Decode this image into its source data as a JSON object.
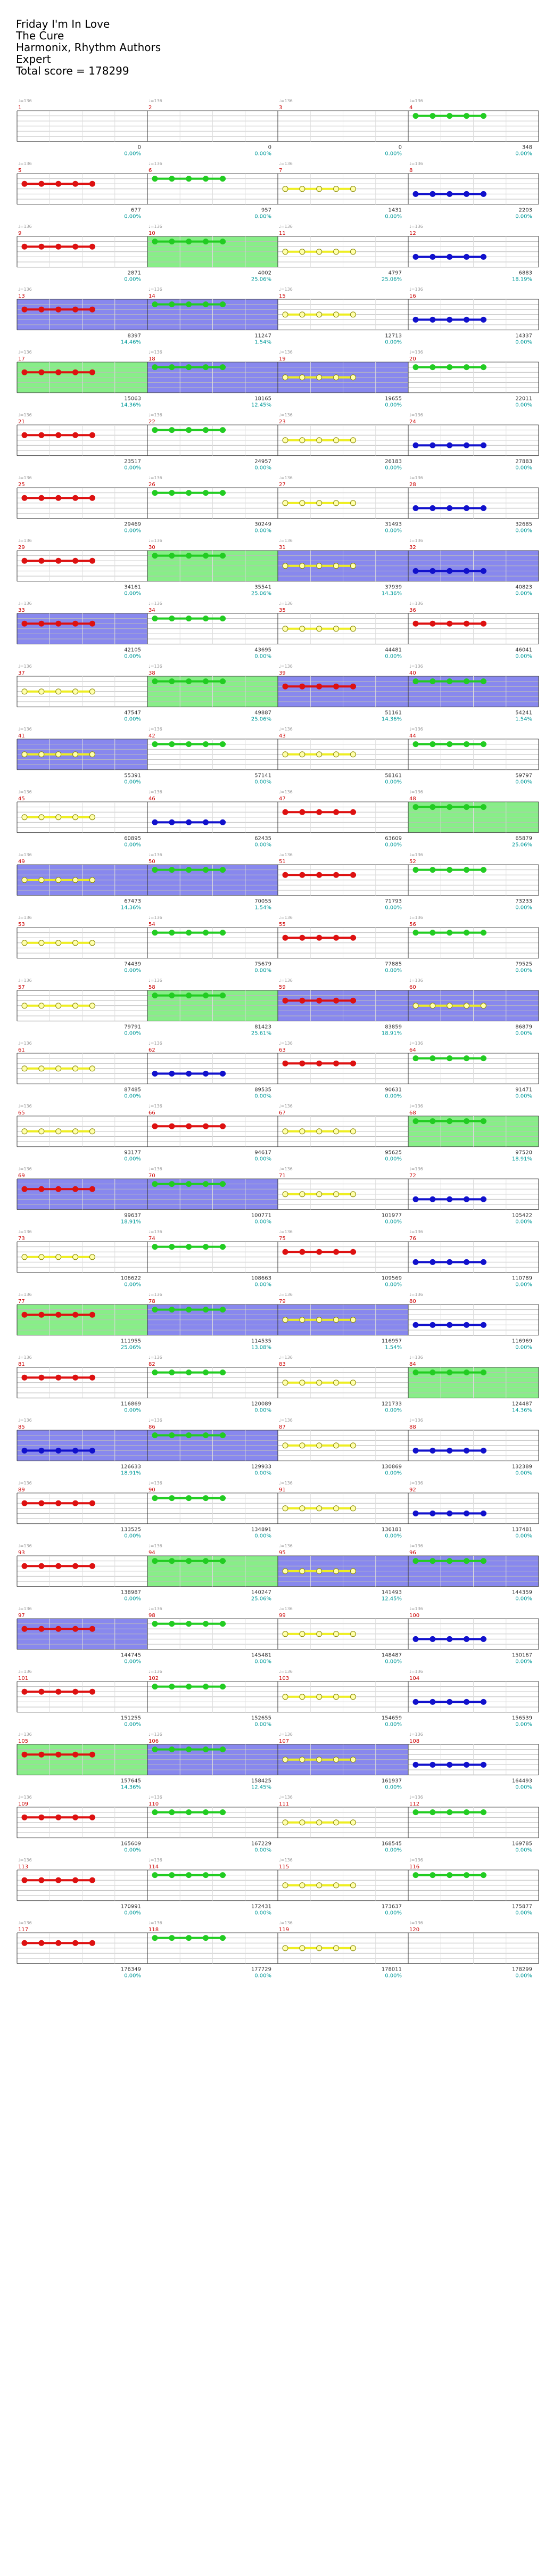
{
  "header": {
    "song": "Friday I'm In Love",
    "artist": "The Cure",
    "charter": "Harmonix, Rhythm Authors",
    "difficulty": "Expert",
    "score_label": "Total score = 178299"
  },
  "measures_per_row": 4,
  "note_colors": {
    "green": "#22cc22",
    "red": "#dd1111",
    "yellow": "#eeee22",
    "blue": "#1111cc",
    "orange": "#ff9900",
    "sp_band": "#8888ee",
    "solo_band": "#88ee88",
    "bar_number": "#cc0000",
    "score_text": "#333333",
    "percent_text": "#009999"
  },
  "measures": [
    {
      "n": 1,
      "score": "0",
      "pct": "0.00%",
      "band": "",
      "lane": ""
    },
    {
      "n": 2,
      "score": "0",
      "pct": "0.00%",
      "band": "",
      "lane": ""
    },
    {
      "n": 3,
      "score": "0",
      "pct": "0.00%",
      "band": "",
      "lane": ""
    },
    {
      "n": 4,
      "score": "348",
      "pct": "0.00%",
      "band": "",
      "lane": "green"
    },
    {
      "n": 5,
      "score": "677",
      "pct": "0.00%",
      "band": "",
      "lane": "red"
    },
    {
      "n": 6,
      "score": "957",
      "pct": "0.00%",
      "band": "",
      "lane": "green"
    },
    {
      "n": 7,
      "score": "1431",
      "pct": "0.00%",
      "band": "",
      "lane": "yellow"
    },
    {
      "n": 8,
      "score": "2203",
      "pct": "0.00%",
      "band": "",
      "lane": "blue"
    },
    {
      "n": 9,
      "score": "2871",
      "pct": "0.00%",
      "band": "",
      "lane": "red"
    },
    {
      "n": 10,
      "score": "4002",
      "pct": "25.06%",
      "band": "solo",
      "lane": "green"
    },
    {
      "n": 11,
      "score": "4797",
      "pct": "25.06%",
      "band": "",
      "lane": "yellow"
    },
    {
      "n": 12,
      "score": "6883",
      "pct": "18.19%",
      "band": "",
      "lane": "blue"
    },
    {
      "n": 13,
      "score": "8397",
      "pct": "14.46%",
      "band": "sp",
      "lane": "red"
    },
    {
      "n": 14,
      "score": "11247",
      "pct": "1.54%",
      "band": "sp",
      "lane": "green"
    },
    {
      "n": 15,
      "score": "12713",
      "pct": "0.00%",
      "band": "",
      "lane": "yellow"
    },
    {
      "n": 16,
      "score": "14337",
      "pct": "0.00%",
      "band": "",
      "lane": "blue"
    },
    {
      "n": 17,
      "score": "15063",
      "pct": "14.36%",
      "band": "solo",
      "lane": "red"
    },
    {
      "n": 18,
      "score": "18165",
      "pct": "12.45%",
      "band": "sp",
      "lane": "green"
    },
    {
      "n": 19,
      "score": "19655",
      "pct": "0.00%",
      "band": "sp",
      "lane": "yellow"
    },
    {
      "n": 20,
      "score": "22011",
      "pct": "0.00%",
      "band": "",
      "lane": "green"
    },
    {
      "n": 21,
      "score": "23517",
      "pct": "0.00%",
      "band": "",
      "lane": "red"
    },
    {
      "n": 22,
      "score": "24957",
      "pct": "0.00%",
      "band": "",
      "lane": "green"
    },
    {
      "n": 23,
      "score": "26183",
      "pct": "0.00%",
      "band": "",
      "lane": "yellow"
    },
    {
      "n": 24,
      "score": "27883",
      "pct": "0.00%",
      "band": "",
      "lane": "blue"
    },
    {
      "n": 25,
      "score": "29469",
      "pct": "0.00%",
      "band": "",
      "lane": "red"
    },
    {
      "n": 26,
      "score": "30249",
      "pct": "0.00%",
      "band": "",
      "lane": "green"
    },
    {
      "n": 27,
      "score": "31493",
      "pct": "0.00%",
      "band": "",
      "lane": "yellow"
    },
    {
      "n": 28,
      "score": "32685",
      "pct": "0.00%",
      "band": "",
      "lane": "blue"
    },
    {
      "n": 29,
      "score": "34161",
      "pct": "0.00%",
      "band": "",
      "lane": "red"
    },
    {
      "n": 30,
      "score": "35541",
      "pct": "25.06%",
      "band": "solo",
      "lane": "green"
    },
    {
      "n": 31,
      "score": "37939",
      "pct": "14.36%",
      "band": "sp",
      "lane": "yellow"
    },
    {
      "n": 32,
      "score": "40823",
      "pct": "0.00%",
      "band": "sp",
      "lane": "blue"
    },
    {
      "n": 33,
      "score": "42105",
      "pct": "0.00%",
      "band": "sp",
      "lane": "red"
    },
    {
      "n": 34,
      "score": "43695",
      "pct": "0.00%",
      "band": "",
      "lane": "green"
    },
    {
      "n": 35,
      "score": "44481",
      "pct": "0.00%",
      "band": "",
      "lane": "yellow"
    },
    {
      "n": 36,
      "score": "46041",
      "pct": "0.00%",
      "band": "",
      "lane": "red"
    },
    {
      "n": 37,
      "score": "47547",
      "pct": "0.00%",
      "band": "",
      "lane": "yellow"
    },
    {
      "n": 38,
      "score": "49887",
      "pct": "25.06%",
      "band": "solo",
      "lane": "green"
    },
    {
      "n": 39,
      "score": "51161",
      "pct": "14.36%",
      "band": "sp",
      "lane": "red"
    },
    {
      "n": 40,
      "score": "54241",
      "pct": "1.54%",
      "band": "sp",
      "lane": "green"
    },
    {
      "n": 41,
      "score": "55391",
      "pct": "0.00%",
      "band": "sp",
      "lane": "yellow"
    },
    {
      "n": 42,
      "score": "57141",
      "pct": "0.00%",
      "band": "",
      "lane": "green"
    },
    {
      "n": 43,
      "score": "58161",
      "pct": "0.00%",
      "band": "",
      "lane": "yellow"
    },
    {
      "n": 44,
      "score": "59797",
      "pct": "0.00%",
      "band": "",
      "lane": "green"
    },
    {
      "n": 45,
      "score": "60895",
      "pct": "0.00%",
      "band": "",
      "lane": "yellow"
    },
    {
      "n": 46,
      "score": "62435",
      "pct": "0.00%",
      "band": "",
      "lane": "blue"
    },
    {
      "n": 47,
      "score": "63609",
      "pct": "0.00%",
      "band": "",
      "lane": "red"
    },
    {
      "n": 48,
      "score": "65879",
      "pct": "25.06%",
      "band": "solo",
      "lane": "green"
    },
    {
      "n": 49,
      "score": "67473",
      "pct": "14.36%",
      "band": "sp",
      "lane": "yellow"
    },
    {
      "n": 50,
      "score": "70055",
      "pct": "1.54%",
      "band": "sp",
      "lane": "green"
    },
    {
      "n": 51,
      "score": "71793",
      "pct": "0.00%",
      "band": "",
      "lane": "red"
    },
    {
      "n": 52,
      "score": "73233",
      "pct": "0.00%",
      "band": "",
      "lane": "green"
    },
    {
      "n": 53,
      "score": "74439",
      "pct": "0.00%",
      "band": "",
      "lane": "yellow"
    },
    {
      "n": 54,
      "score": "75679",
      "pct": "0.00%",
      "band": "",
      "lane": "green"
    },
    {
      "n": 55,
      "score": "77885",
      "pct": "0.00%",
      "band": "",
      "lane": "red"
    },
    {
      "n": 56,
      "score": "79525",
      "pct": "0.00%",
      "band": "",
      "lane": "green"
    },
    {
      "n": 57,
      "score": "79791",
      "pct": "0.00%",
      "band": "",
      "lane": "yellow"
    },
    {
      "n": 58,
      "score": "81423",
      "pct": "25.61%",
      "band": "solo",
      "lane": "green"
    },
    {
      "n": 59,
      "score": "83859",
      "pct": "18.91%",
      "band": "sp",
      "lane": "red"
    },
    {
      "n": 60,
      "score": "86879",
      "pct": "0.00%",
      "band": "sp",
      "lane": "yellow"
    },
    {
      "n": 61,
      "score": "87485",
      "pct": "0.00%",
      "band": "",
      "lane": "yellow"
    },
    {
      "n": 62,
      "score": "89535",
      "pct": "0.00%",
      "band": "",
      "lane": "blue"
    },
    {
      "n": 63,
      "score": "90631",
      "pct": "0.00%",
      "band": "",
      "lane": "red"
    },
    {
      "n": 64,
      "score": "91471",
      "pct": "0.00%",
      "band": "",
      "lane": "green"
    },
    {
      "n": 65,
      "score": "93177",
      "pct": "0.00%",
      "band": "",
      "lane": "yellow"
    },
    {
      "n": 66,
      "score": "94617",
      "pct": "0.00%",
      "band": "",
      "lane": "red"
    },
    {
      "n": 67,
      "score": "95625",
      "pct": "0.00%",
      "band": "",
      "lane": "yellow"
    },
    {
      "n": 68,
      "score": "97520",
      "pct": "18.91%",
      "band": "solo",
      "lane": "green"
    },
    {
      "n": 69,
      "score": "99637",
      "pct": "18.91%",
      "band": "sp",
      "lane": "red"
    },
    {
      "n": 70,
      "score": "100771",
      "pct": "0.00%",
      "band": "sp",
      "lane": "green"
    },
    {
      "n": 71,
      "score": "101977",
      "pct": "0.00%",
      "band": "",
      "lane": "yellow"
    },
    {
      "n": 72,
      "score": "105422",
      "pct": "0.00%",
      "band": "",
      "lane": "blue"
    },
    {
      "n": 73,
      "score": "106622",
      "pct": "0.00%",
      "band": "",
      "lane": "yellow"
    },
    {
      "n": 74,
      "score": "108663",
      "pct": "0.00%",
      "band": "",
      "lane": "green"
    },
    {
      "n": 75,
      "score": "109569",
      "pct": "0.00%",
      "band": "",
      "lane": "red"
    },
    {
      "n": 76,
      "score": "110789",
      "pct": "0.00%",
      "band": "",
      "lane": "blue"
    },
    {
      "n": 77,
      "score": "111955",
      "pct": "25.06%",
      "band": "solo",
      "lane": "red"
    },
    {
      "n": 78,
      "score": "114535",
      "pct": "13.08%",
      "band": "sp",
      "lane": "green"
    },
    {
      "n": 79,
      "score": "116957",
      "pct": "1.54%",
      "band": "sp",
      "lane": "yellow"
    },
    {
      "n": 80,
      "score": "116969",
      "pct": "0.00%",
      "band": "",
      "lane": "blue"
    },
    {
      "n": 81,
      "score": "116869",
      "pct": "0.00%",
      "band": "",
      "lane": "red"
    },
    {
      "n": 82,
      "score": "120089",
      "pct": "0.00%",
      "band": "",
      "lane": "green"
    },
    {
      "n": 83,
      "score": "121733",
      "pct": "0.00%",
      "band": "",
      "lane": "yellow"
    },
    {
      "n": 84,
      "score": "124487",
      "pct": "14.36%",
      "band": "solo",
      "lane": "green"
    },
    {
      "n": 85,
      "score": "126633",
      "pct": "18.91%",
      "band": "sp",
      "lane": "blue"
    },
    {
      "n": 86,
      "score": "129933",
      "pct": "0.00%",
      "band": "sp",
      "lane": "green"
    },
    {
      "n": 87,
      "score": "130869",
      "pct": "0.00%",
      "band": "",
      "lane": "yellow"
    },
    {
      "n": 88,
      "score": "132389",
      "pct": "0.00%",
      "band": "",
      "lane": "blue"
    },
    {
      "n": 89,
      "score": "133525",
      "pct": "0.00%",
      "band": "",
      "lane": "red"
    },
    {
      "n": 90,
      "score": "134891",
      "pct": "0.00%",
      "band": "",
      "lane": "green"
    },
    {
      "n": 91,
      "score": "136181",
      "pct": "0.00%",
      "band": "",
      "lane": "yellow"
    },
    {
      "n": 92,
      "score": "137481",
      "pct": "0.00%",
      "band": "",
      "lane": "blue"
    },
    {
      "n": 93,
      "score": "138987",
      "pct": "0.00%",
      "band": "",
      "lane": "red"
    },
    {
      "n": 94,
      "score": "140247",
      "pct": "25.06%",
      "band": "solo",
      "lane": "green"
    },
    {
      "n": 95,
      "score": "141493",
      "pct": "12.45%",
      "band": "sp",
      "lane": "yellow"
    },
    {
      "n": 96,
      "score": "144359",
      "pct": "0.00%",
      "band": "sp",
      "lane": "green"
    },
    {
      "n": 97,
      "score": "144745",
      "pct": "0.00%",
      "band": "sp",
      "lane": "red"
    },
    {
      "n": 98,
      "score": "145481",
      "pct": "0.00%",
      "band": "",
      "lane": "green"
    },
    {
      "n": 99,
      "score": "148487",
      "pct": "0.00%",
      "band": "",
      "lane": "yellow"
    },
    {
      "n": 100,
      "score": "150167",
      "pct": "0.00%",
      "band": "",
      "lane": "blue"
    },
    {
      "n": 101,
      "score": "151255",
      "pct": "0.00%",
      "band": "",
      "lane": "red"
    },
    {
      "n": 102,
      "score": "152655",
      "pct": "0.00%",
      "band": "",
      "lane": "green"
    },
    {
      "n": 103,
      "score": "154659",
      "pct": "0.00%",
      "band": "",
      "lane": "yellow"
    },
    {
      "n": 104,
      "score": "156539",
      "pct": "0.00%",
      "band": "",
      "lane": "blue"
    },
    {
      "n": 105,
      "score": "157645",
      "pct": "14.36%",
      "band": "solo",
      "lane": "red"
    },
    {
      "n": 106,
      "score": "158425",
      "pct": "12.45%",
      "band": "sp",
      "lane": "green"
    },
    {
      "n": 107,
      "score": "161937",
      "pct": "0.00%",
      "band": "sp",
      "lane": "yellow"
    },
    {
      "n": 108,
      "score": "164493",
      "pct": "0.00%",
      "band": "",
      "lane": "blue"
    },
    {
      "n": 109,
      "score": "165609",
      "pct": "0.00%",
      "band": "",
      "lane": "red"
    },
    {
      "n": 110,
      "score": "167229",
      "pct": "0.00%",
      "band": "",
      "lane": "green"
    },
    {
      "n": 111,
      "score": "168545",
      "pct": "0.00%",
      "band": "",
      "lane": "yellow"
    },
    {
      "n": 112,
      "score": "169785",
      "pct": "0.00%",
      "band": "",
      "lane": "green"
    },
    {
      "n": 113,
      "score": "170991",
      "pct": "0.00%",
      "band": "",
      "lane": "red"
    },
    {
      "n": 114,
      "score": "172431",
      "pct": "0.00%",
      "band": "",
      "lane": "green"
    },
    {
      "n": 115,
      "score": "173637",
      "pct": "0.00%",
      "band": "",
      "lane": "yellow"
    },
    {
      "n": 116,
      "score": "175877",
      "pct": "0.00%",
      "band": "",
      "lane": "green"
    },
    {
      "n": 117,
      "score": "176349",
      "pct": "0.00%",
      "band": "",
      "lane": "red"
    },
    {
      "n": 118,
      "score": "177729",
      "pct": "0.00%",
      "band": "",
      "lane": "green"
    },
    {
      "n": 119,
      "score": "178011",
      "pct": "0.00%",
      "band": "",
      "lane": "yellow"
    },
    {
      "n": 120,
      "score": "178299",
      "pct": "0.00%",
      "band": "",
      "lane": ""
    }
  ]
}
